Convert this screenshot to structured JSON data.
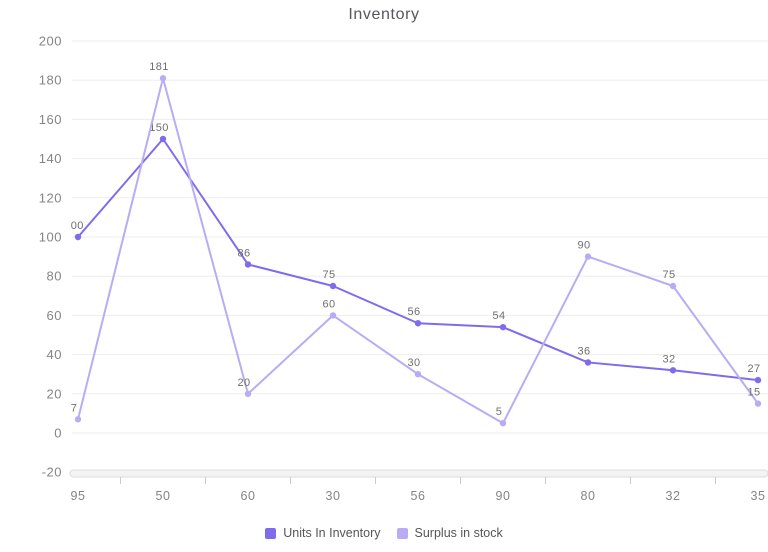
{
  "chart_data": {
    "type": "line",
    "title": "Inventory",
    "categories": [
      "95",
      "50",
      "60",
      "30",
      "56",
      "90",
      "80",
      "32",
      "35"
    ],
    "series": [
      {
        "name": "Units In Inventory",
        "color": "#7f6cec",
        "values": [
          100,
          150,
          86,
          75,
          56,
          54,
          36,
          32,
          27
        ]
      },
      {
        "name": "Surplus in stock",
        "color": "#b9acf5",
        "values": [
          7,
          181,
          20,
          60,
          30,
          5,
          90,
          75,
          15
        ]
      }
    ],
    "y_ticks": [
      200,
      180,
      160,
      140,
      120,
      100,
      80,
      60,
      40,
      20,
      0,
      -20
    ],
    "ylim": [
      -20,
      200
    ],
    "grid": true,
    "legend_position": "bottom",
    "colors": {
      "grid_line": "#ededed",
      "value_label": "#6f6f6f",
      "axis_label": "#858585",
      "axis_track_fill": "#f3f3f3",
      "axis_track_border": "#dedede",
      "tick_mark": "#cccccc",
      "title": "#56585c"
    }
  }
}
